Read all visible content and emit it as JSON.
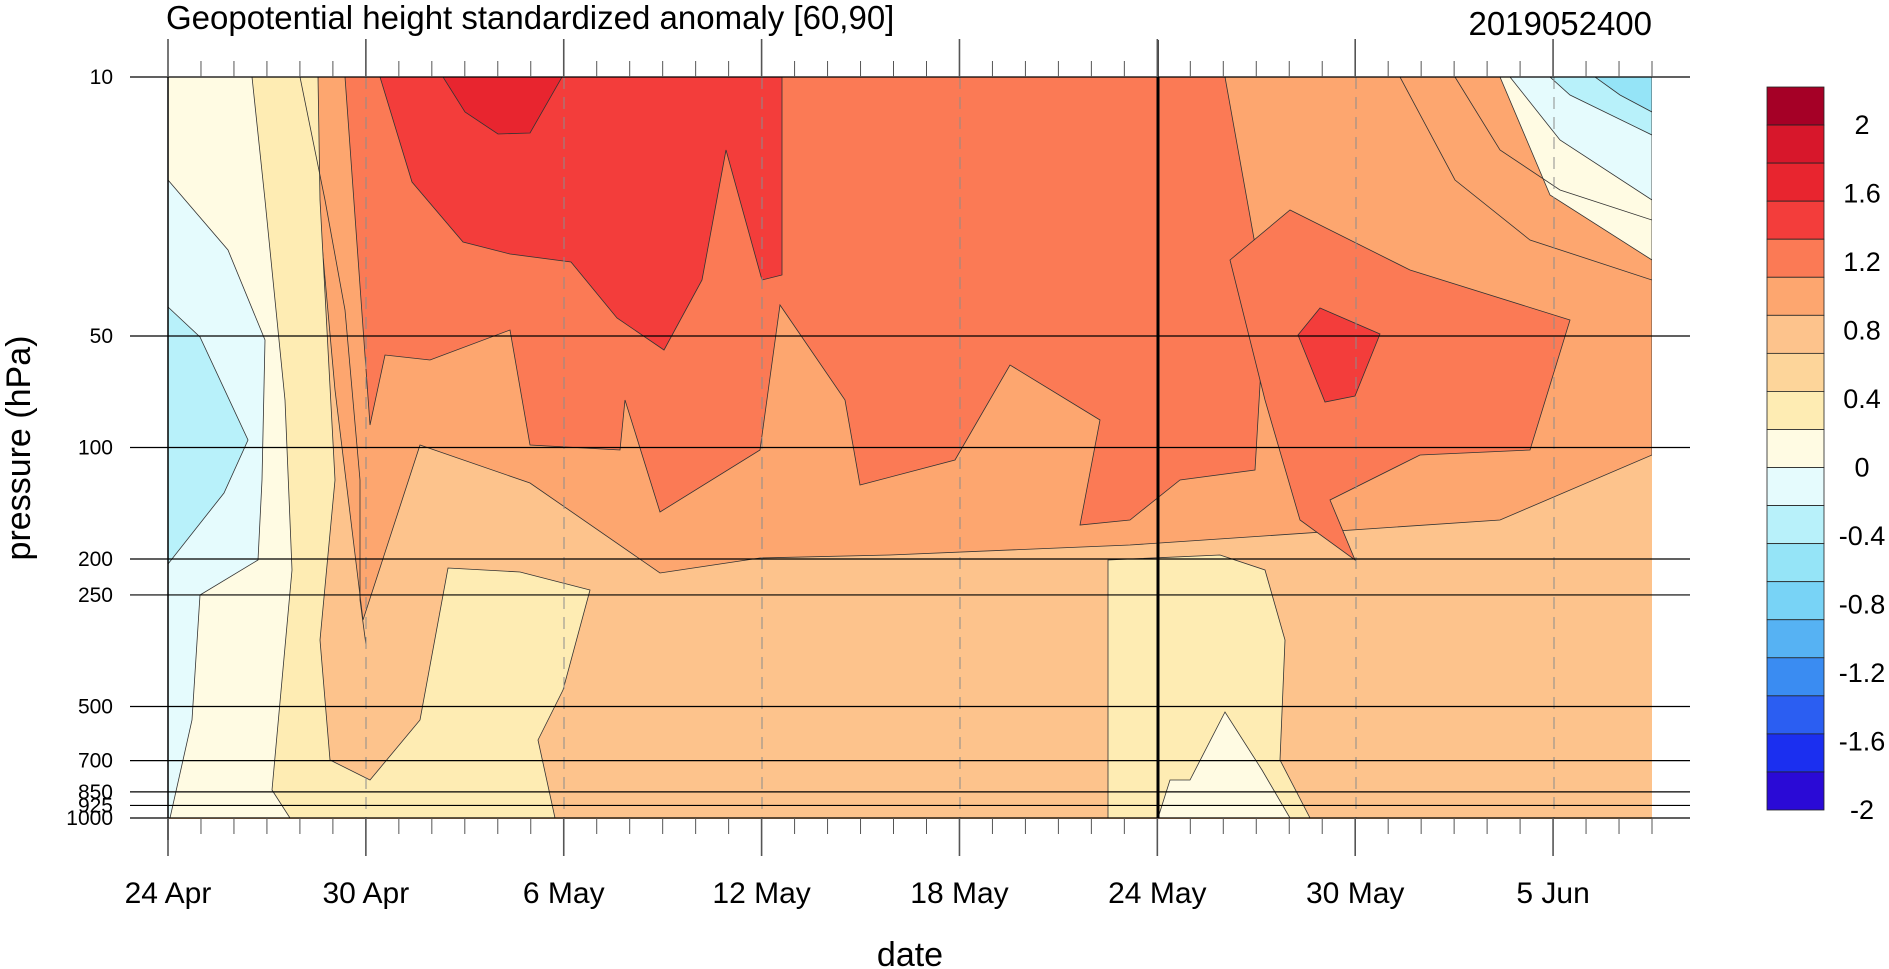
{
  "chart_data": {
    "type": "contour",
    "title": "Geopotential height standardized anomaly [60,90]",
    "date_label": "2019052400",
    "xlabel": "date",
    "ylabel": "pressure (hPa)",
    "x_ticks": [
      "24 Apr",
      "30 Apr",
      "6 May",
      "12 May",
      "18 May",
      "24 May",
      "30 May",
      "5 Jun"
    ],
    "y_ticks": [
      "10",
      "50",
      "100",
      "200",
      "250",
      "500",
      "700",
      "850",
      "925",
      "1000"
    ],
    "y_scale": "log",
    "x_range": [
      "24 Apr",
      "8 Jun"
    ],
    "marker_line": "24 May",
    "colorbar": {
      "labels": [
        "2",
        "1.6",
        "1.2",
        "0.8",
        "0.4",
        "0",
        "-0.4",
        "-0.8",
        "-1.2",
        "-1.6",
        "-2"
      ],
      "colors": [
        "#a50026",
        "#d7172b",
        "#e8252f",
        "#f33d3b",
        "#fb7a55",
        "#fda66f",
        "#fdc38c",
        "#fdd59a",
        "#feecb3",
        "#fffbe3",
        "#e5fbfd",
        "#b8f1fa",
        "#95e4f7",
        "#78d3f6",
        "#56b2f3",
        "#3a8cf2",
        "#2b5ef2",
        "#1b2ff0",
        "#2a0ad6"
      ]
    },
    "regions": [
      {
        "value": 1.6,
        "date": "5 May",
        "pressure": 12
      },
      {
        "value": 1.4,
        "date": "8 May",
        "pressure": 25
      },
      {
        "value": 1.2,
        "date": "26 May",
        "pressure": 60
      },
      {
        "value": 1.4,
        "date": "29 May",
        "pressure": 60
      },
      {
        "value": 1.0,
        "date": "18 May",
        "pressure": 30
      },
      {
        "value": 0.8,
        "date": "18 May",
        "pressure": 170
      },
      {
        "value": 0.6,
        "date": "18 May",
        "pressure": 700
      },
      {
        "value": 0.4,
        "date": "3 May",
        "pressure": 400
      },
      {
        "value": 0.0,
        "date": "25 Apr",
        "pressure": 40
      },
      {
        "value": -0.4,
        "date": "25 Apr",
        "pressure": 100
      },
      {
        "value": -0.4,
        "date": "7 Jun",
        "pressure": 15
      }
    ]
  }
}
